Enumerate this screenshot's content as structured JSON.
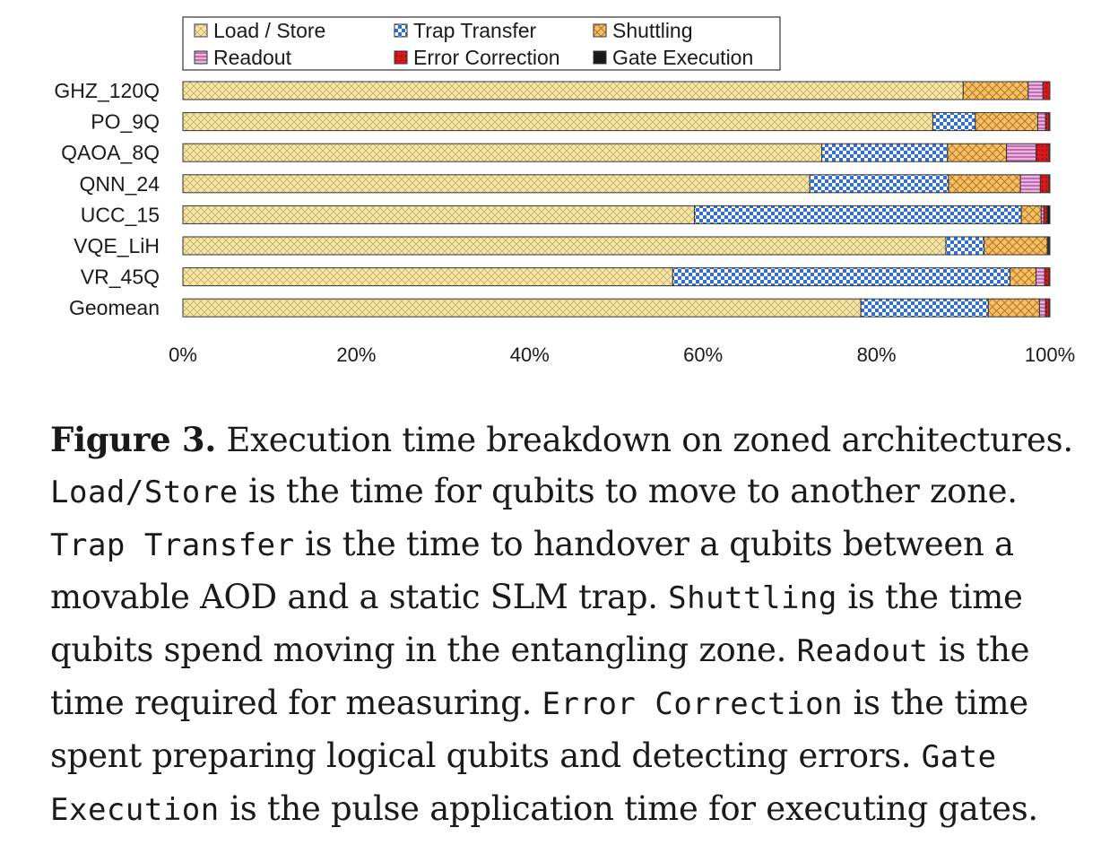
{
  "chart_data": {
    "type": "bar",
    "orientation": "horizontal",
    "stacked": true,
    "categories": [
      "GHZ_120Q",
      "PO_9Q",
      "QAOA_8Q",
      "QNN_24",
      "UCC_15",
      "VQE_LiH",
      "VR_45Q",
      "Geomean"
    ],
    "series": [
      {
        "name": "Load / Store",
        "color": "#f5e6a8",
        "pattern": "crosshatch",
        "values": [
          90.0,
          86.5,
          73.7,
          72.3,
          59.0,
          88.0,
          56.5,
          78.2
        ]
      },
      {
        "name": "Trap Transfer",
        "color": "#3b82d6",
        "pattern": "checker",
        "values": [
          0.0,
          4.9,
          14.5,
          16.0,
          37.7,
          4.4,
          38.9,
          14.7
        ]
      },
      {
        "name": "Shuttling",
        "color": "#f5b95a",
        "pattern": "crosshatch",
        "values": [
          7.5,
          7.2,
          6.8,
          8.3,
          2.3,
          7.3,
          3.0,
          5.9
        ]
      },
      {
        "name": "Readout",
        "color": "#e6a3d6",
        "pattern": "horizontal-lines",
        "values": [
          1.7,
          0.9,
          3.4,
          2.3,
          0.3,
          0.1,
          1.0,
          0.7
        ]
      },
      {
        "name": "Error Correction",
        "color": "#d7191c",
        "pattern": "dots",
        "values": [
          0.8,
          0.4,
          1.5,
          1.0,
          0.4,
          0.1,
          0.5,
          0.4
        ]
      },
      {
        "name": "Gate Execution",
        "color": "#1a1a1a",
        "pattern": "solid",
        "values": [
          0.0,
          0.1,
          0.1,
          0.1,
          0.3,
          0.1,
          0.1,
          0.1
        ]
      }
    ],
    "xlim": [
      0,
      100
    ],
    "xticks": [
      "0%",
      "20%",
      "40%",
      "60%",
      "80%",
      "100%"
    ],
    "legend_position": "top",
    "grid": false,
    "title": "",
    "xlabel": "",
    "ylabel": ""
  },
  "caption": {
    "label": "Figure 3.",
    "t1": " Execution time breakdown on zoned architectures. ",
    "c1": "Load/Store",
    "t2": " is the time for qubits to move to another zone. ",
    "c2": "Trap Transfer",
    "t3": " is the time to handover a qubits between a movable AOD and a static SLM trap. ",
    "c3": "Shuttling",
    "t4": " is the time qubits spend moving in the entangling zone. ",
    "c4": "Readout",
    "t5": " is the time required for measuring. ",
    "c5": "Error Correction",
    "t6": " is the time spent preparing logical qubits and detecting errors. ",
    "c6": "Gate Execution",
    "t7": " is the pulse application time for executing gates."
  }
}
